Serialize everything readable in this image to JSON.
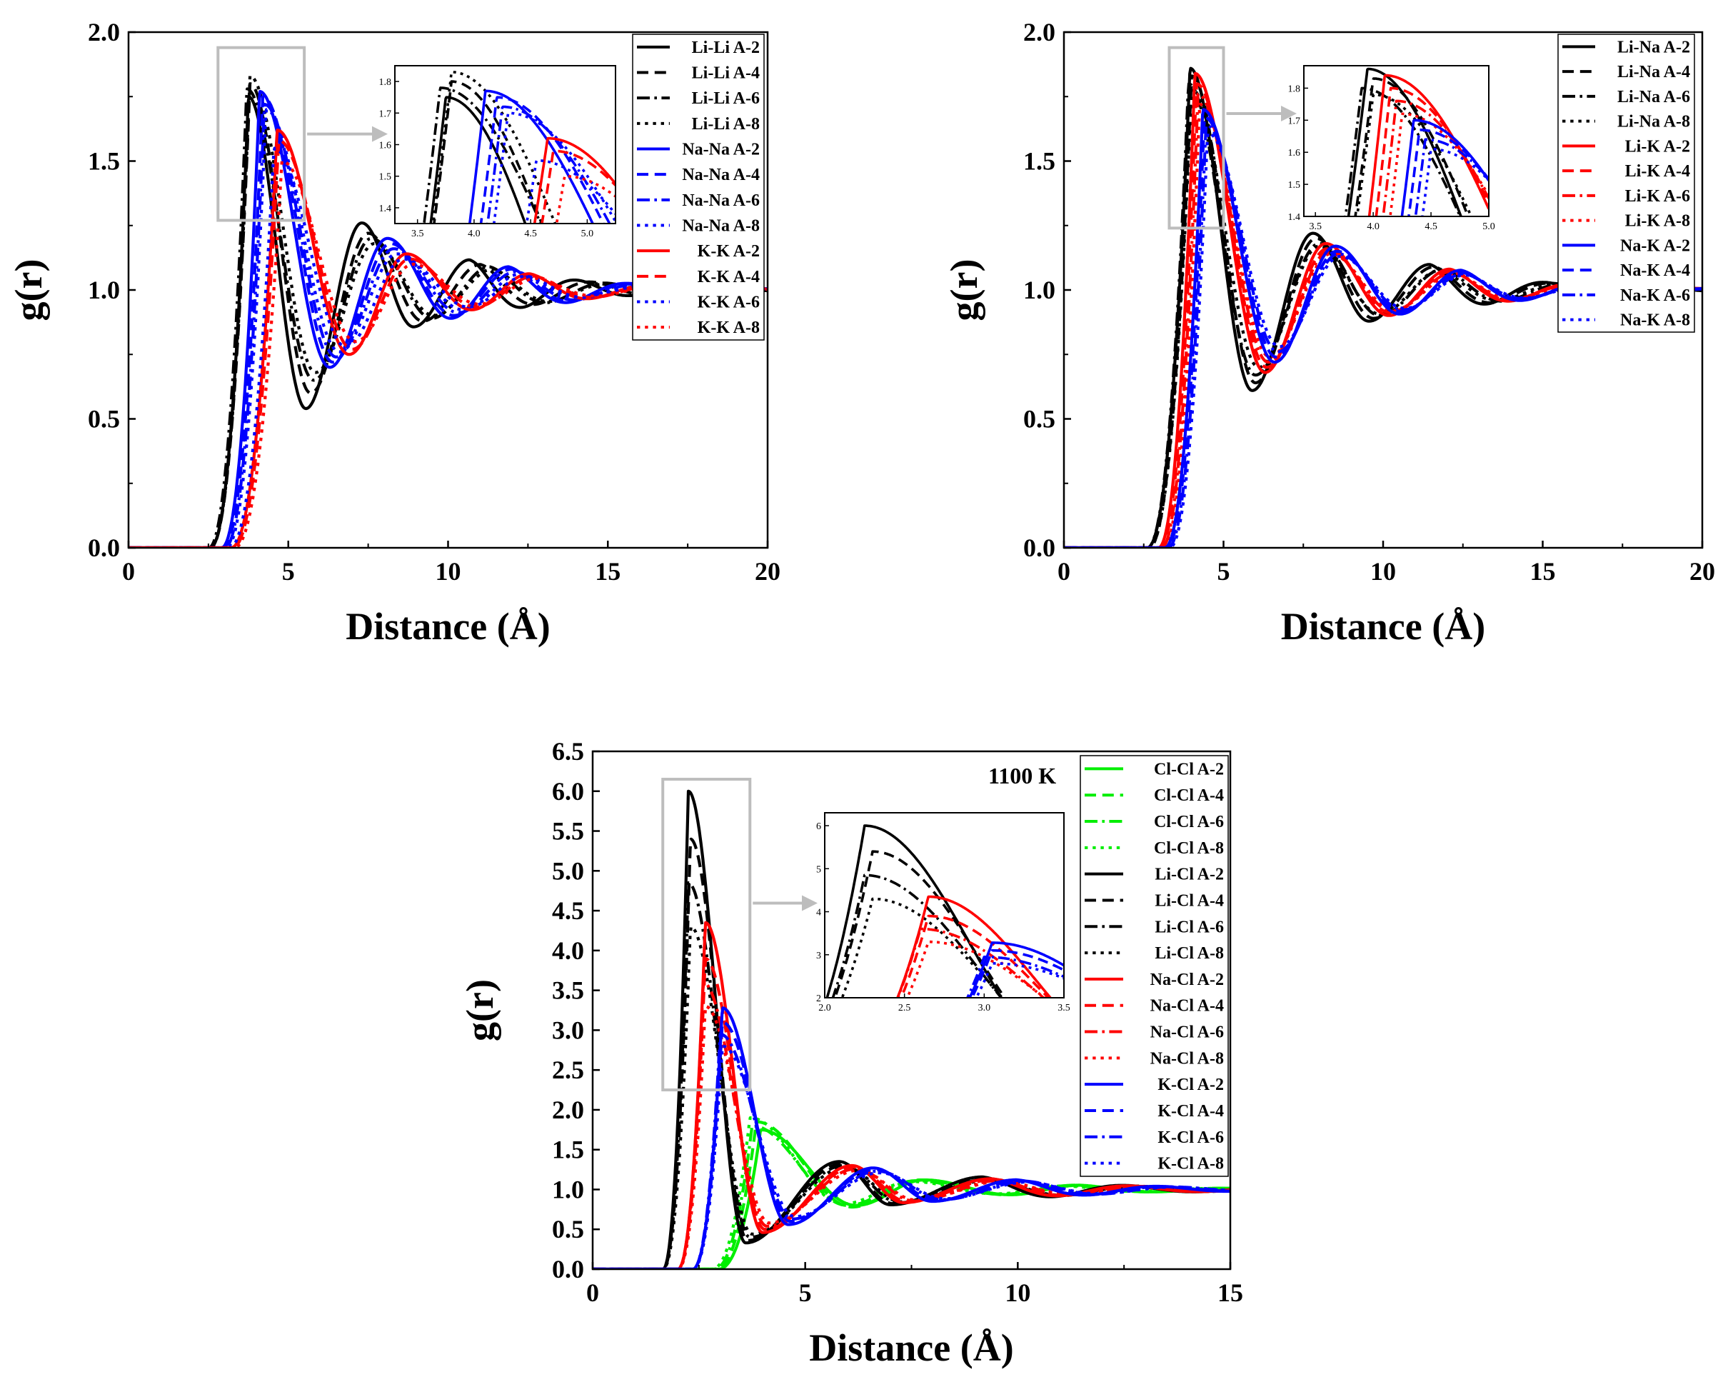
{
  "chart_data": [
    {
      "id": "panel_a",
      "type": "line",
      "xlabel": "Distance (Å)",
      "ylabel": "g(r)",
      "xlim": [
        0,
        20
      ],
      "ylim": [
        0,
        2.0
      ],
      "xticks": [
        0,
        5,
        10,
        15,
        20
      ],
      "yticks": [
        0.0,
        0.5,
        1.0,
        1.5,
        2.0
      ],
      "xtick_labels": [
        "0",
        "5",
        "10",
        "15",
        "20"
      ],
      "ytick_labels": [
        "0.0",
        "0.5",
        "1.0",
        "1.5",
        "2.0"
      ],
      "legend_position": "top-right",
      "series": [
        {
          "name": "Li-Li A-2",
          "color": "#000000",
          "style": "solid",
          "peak": 3.75,
          "height": 1.75,
          "start": 2.55,
          "min_pos": 5.55,
          "min_val": 0.54,
          "second_pos": 7.3,
          "second_val": 1.26
        },
        {
          "name": "Li-Li A-4",
          "color": "#000000",
          "style": "dash",
          "peak": 3.8,
          "height": 1.8,
          "start": 2.55,
          "min_pos": 5.7,
          "min_val": 0.6,
          "second_pos": 7.5,
          "second_val": 1.22
        },
        {
          "name": "Li-Li A-6",
          "color": "#000000",
          "style": "dashdot",
          "peak": 3.7,
          "height": 1.78,
          "start": 2.5,
          "min_pos": 5.8,
          "min_val": 0.65,
          "second_pos": 7.6,
          "second_val": 1.2
        },
        {
          "name": "Li-Li A-8",
          "color": "#000000",
          "style": "dot",
          "peak": 3.8,
          "height": 1.83,
          "start": 2.55,
          "min_pos": 5.85,
          "min_val": 0.68,
          "second_pos": 7.7,
          "second_val": 1.18
        },
        {
          "name": "Na-Na A-2",
          "color": "#0000ff",
          "style": "solid",
          "peak": 4.1,
          "height": 1.77,
          "start": 2.9,
          "min_pos": 6.3,
          "min_val": 0.7,
          "second_pos": 8.1,
          "second_val": 1.2
        },
        {
          "name": "Na-Na A-4",
          "color": "#0000ff",
          "style": "dash",
          "peak": 4.2,
          "height": 1.75,
          "start": 2.95,
          "min_pos": 6.4,
          "min_val": 0.72,
          "second_pos": 8.2,
          "second_val": 1.18
        },
        {
          "name": "Na-Na A-6",
          "color": "#0000ff",
          "style": "dashdot",
          "peak": 4.25,
          "height": 1.72,
          "start": 3.0,
          "min_pos": 6.5,
          "min_val": 0.74,
          "second_pos": 8.3,
          "second_val": 1.16
        },
        {
          "name": "Na-Na A-8",
          "color": "#0000ff",
          "style": "dot",
          "peak": 4.3,
          "height": 1.7,
          "start": 3.05,
          "min_pos": 6.6,
          "min_val": 0.76,
          "second_pos": 8.4,
          "second_val": 1.14
        },
        {
          "name": "K-K A-2",
          "color": "#ff0000",
          "style": "solid",
          "peak": 4.65,
          "height": 1.62,
          "start": 3.2,
          "min_pos": 6.9,
          "min_val": 0.75,
          "second_pos": 8.7,
          "second_val": 1.14
        },
        {
          "name": "K-K A-4",
          "color": "#ff0000",
          "style": "dash",
          "peak": 4.7,
          "height": 1.58,
          "start": 3.25,
          "min_pos": 7.0,
          "min_val": 0.77,
          "second_pos": 8.8,
          "second_val": 1.12
        },
        {
          "name": "K-K A-6",
          "color": "#0000ff",
          "style": "dot",
          "peak": 4.55,
          "height": 1.55,
          "start": 3.15,
          "min_pos": 6.8,
          "min_val": 0.78,
          "second_pos": 8.6,
          "second_val": 1.12
        },
        {
          "name": "K-K A-8",
          "color": "#ff0000",
          "style": "dot",
          "peak": 4.8,
          "height": 1.5,
          "start": 3.3,
          "min_pos": 7.1,
          "min_val": 0.8,
          "second_pos": 8.9,
          "second_val": 1.1
        }
      ],
      "inset": {
        "xlim": [
          3.3,
          5.25
        ],
        "ylim": [
          1.35,
          1.85
        ],
        "xticks": [
          3.5,
          4.0,
          4.5,
          5.0
        ],
        "yticks": [
          1.4,
          1.5,
          1.6,
          1.7,
          1.8
        ],
        "xtick_labels": [
          "3.5",
          "4.0",
          "4.5",
          "5.0"
        ],
        "ytick_labels": [
          "1.4",
          "1.5",
          "1.6",
          "1.7",
          "1.8"
        ]
      }
    },
    {
      "id": "panel_b",
      "type": "line",
      "xlabel": "Distance (Å)",
      "ylabel": "g(r)",
      "xlim": [
        0,
        20
      ],
      "ylim": [
        0,
        2.0
      ],
      "xticks": [
        0,
        5,
        10,
        15,
        20
      ],
      "yticks": [
        0.0,
        0.5,
        1.0,
        1.5,
        2.0
      ],
      "xtick_labels": [
        "0",
        "5",
        "10",
        "15",
        "20"
      ],
      "ytick_labels": [
        "0.0",
        "0.5",
        "1.0",
        "1.5",
        "2.0"
      ],
      "legend_position": "top-right",
      "series": [
        {
          "name": "Li-Na A-2",
          "color": "#000000",
          "style": "solid",
          "peak": 3.95,
          "height": 1.86,
          "start": 2.6,
          "min_pos": 5.9,
          "min_val": 0.61,
          "second_pos": 7.8,
          "second_val": 1.22
        },
        {
          "name": "Li-Na A-4",
          "color": "#000000",
          "style": "dash",
          "peak": 4.0,
          "height": 1.83,
          "start": 2.65,
          "min_pos": 6.0,
          "min_val": 0.64,
          "second_pos": 7.9,
          "second_val": 1.2
        },
        {
          "name": "Li-Na A-6",
          "color": "#000000",
          "style": "dashdot",
          "peak": 3.9,
          "height": 1.8,
          "start": 2.6,
          "min_pos": 6.0,
          "min_val": 0.67,
          "second_pos": 8.0,
          "second_val": 1.18
        },
        {
          "name": "Li-Na A-8",
          "color": "#000000",
          "style": "dot",
          "peak": 4.0,
          "height": 1.78,
          "start": 2.65,
          "min_pos": 6.1,
          "min_val": 0.7,
          "second_pos": 8.0,
          "second_val": 1.17
        },
        {
          "name": "Li-K A-2",
          "color": "#ff0000",
          "style": "solid",
          "peak": 4.1,
          "height": 1.84,
          "start": 2.95,
          "min_pos": 6.3,
          "min_val": 0.68,
          "second_pos": 8.2,
          "second_val": 1.18
        },
        {
          "name": "Li-K A-4",
          "color": "#ff0000",
          "style": "dash",
          "peak": 4.15,
          "height": 1.8,
          "start": 3.0,
          "min_pos": 6.35,
          "min_val": 0.7,
          "second_pos": 8.25,
          "second_val": 1.16
        },
        {
          "name": "Li-K A-6",
          "color": "#ff0000",
          "style": "dashdot",
          "peak": 4.2,
          "height": 1.76,
          "start": 3.05,
          "min_pos": 6.4,
          "min_val": 0.72,
          "second_pos": 8.3,
          "second_val": 1.15
        },
        {
          "name": "Li-K A-8",
          "color": "#ff0000",
          "style": "dot",
          "peak": 4.25,
          "height": 1.72,
          "start": 3.1,
          "min_pos": 6.45,
          "min_val": 0.74,
          "second_pos": 8.35,
          "second_val": 1.14
        },
        {
          "name": "Na-K A-2",
          "color": "#0000ff",
          "style": "solid",
          "peak": 4.35,
          "height": 1.7,
          "start": 3.15,
          "min_pos": 6.6,
          "min_val": 0.72,
          "second_pos": 8.5,
          "second_val": 1.17
        },
        {
          "name": "Na-K A-4",
          "color": "#0000ff",
          "style": "dash",
          "peak": 4.4,
          "height": 1.67,
          "start": 3.2,
          "min_pos": 6.65,
          "min_val": 0.74,
          "second_pos": 8.55,
          "second_val": 1.15
        },
        {
          "name": "Na-K A-6",
          "color": "#0000ff",
          "style": "dashdot",
          "peak": 4.45,
          "height": 1.64,
          "start": 3.25,
          "min_pos": 6.7,
          "min_val": 0.76,
          "second_pos": 8.6,
          "second_val": 1.14
        },
        {
          "name": "Na-K A-8",
          "color": "#0000ff",
          "style": "dot",
          "peak": 4.5,
          "height": 1.61,
          "start": 3.3,
          "min_pos": 6.75,
          "min_val": 0.78,
          "second_pos": 8.65,
          "second_val": 1.13
        }
      ],
      "inset": {
        "xlim": [
          3.4,
          5.0
        ],
        "ylim": [
          1.4,
          1.87
        ],
        "xticks": [
          3.5,
          4.0,
          4.5,
          5.0
        ],
        "yticks": [
          1.4,
          1.5,
          1.6,
          1.7,
          1.8
        ],
        "xtick_labels": [
          "3.5",
          "4.0",
          "4.5",
          "5.0"
        ],
        "ytick_labels": [
          "1.4",
          "1.5",
          "1.6",
          "1.7",
          "1.8"
        ]
      }
    },
    {
      "id": "panel_c",
      "type": "line",
      "xlabel": "Distance (Å)",
      "ylabel": "g(r)",
      "annotation": "1100 K",
      "xlim": [
        0,
        15
      ],
      "ylim": [
        0,
        6.5
      ],
      "xticks": [
        0,
        5,
        10,
        15
      ],
      "yticks": [
        0.0,
        0.5,
        1.0,
        1.5,
        2.0,
        2.5,
        3.0,
        3.5,
        4.0,
        4.5,
        5.0,
        5.5,
        6.0,
        6.5
      ],
      "xtick_labels": [
        "0",
        "5",
        "10",
        "15"
      ],
      "ytick_labels": [
        "0.0",
        "0.5",
        "1.0",
        "1.5",
        "2.0",
        "2.5",
        "3.0",
        "3.5",
        "4.0",
        "4.5",
        "5.0",
        "5.5",
        "6.0",
        "6.5"
      ],
      "legend_position": "top-right",
      "series": [
        {
          "name": "Cl-Cl A-2",
          "color": "#00ee00",
          "style": "solid",
          "peak": 3.95,
          "height": 1.75,
          "start": 2.95,
          "min_pos": 6.2,
          "min_val": 0.8,
          "second_pos": 7.8,
          "second_val": 1.12
        },
        {
          "name": "Cl-Cl A-4",
          "color": "#00ee00",
          "style": "dash",
          "peak": 3.85,
          "height": 1.85,
          "start": 2.9,
          "min_pos": 6.1,
          "min_val": 0.78,
          "second_pos": 7.7,
          "second_val": 1.12
        },
        {
          "name": "Cl-Cl A-6",
          "color": "#00ee00",
          "style": "dashdot",
          "peak": 3.75,
          "height": 1.8,
          "start": 2.85,
          "min_pos": 6.0,
          "min_val": 0.8,
          "second_pos": 7.6,
          "second_val": 1.11
        },
        {
          "name": "Cl-Cl A-8",
          "color": "#00ee00",
          "style": "dot",
          "peak": 3.7,
          "height": 1.9,
          "start": 2.8,
          "min_pos": 5.9,
          "min_val": 0.82,
          "second_pos": 7.5,
          "second_val": 1.1
        },
        {
          "name": "Li-Cl A-2",
          "color": "#000000",
          "style": "solid",
          "peak": 2.25,
          "height": 6.0,
          "start": 1.65,
          "min_pos": 3.6,
          "min_val": 0.33,
          "second_pos": 5.8,
          "second_val": 1.35
        },
        {
          "name": "Li-Cl A-4",
          "color": "#000000",
          "style": "dash",
          "peak": 2.3,
          "height": 5.4,
          "start": 1.65,
          "min_pos": 3.65,
          "min_val": 0.36,
          "second_pos": 5.85,
          "second_val": 1.32
        },
        {
          "name": "Li-Cl A-6",
          "color": "#000000",
          "style": "dashdot",
          "peak": 2.25,
          "height": 4.85,
          "start": 1.65,
          "min_pos": 3.7,
          "min_val": 0.4,
          "second_pos": 5.9,
          "second_val": 1.3
        },
        {
          "name": "Li-Cl A-8",
          "color": "#000000",
          "style": "dot",
          "peak": 2.3,
          "height": 4.3,
          "start": 1.65,
          "min_pos": 3.75,
          "min_val": 0.44,
          "second_pos": 5.95,
          "second_val": 1.28
        },
        {
          "name": "Na-Cl A-2",
          "color": "#ff0000",
          "style": "solid",
          "peak": 2.65,
          "height": 4.35,
          "start": 2.0,
          "min_pos": 4.0,
          "min_val": 0.46,
          "second_pos": 6.1,
          "second_val": 1.3
        },
        {
          "name": "Na-Cl A-4",
          "color": "#ff0000",
          "style": "dash",
          "peak": 2.65,
          "height": 3.9,
          "start": 2.0,
          "min_pos": 4.05,
          "min_val": 0.5,
          "second_pos": 6.15,
          "second_val": 1.28
        },
        {
          "name": "Na-Cl A-6",
          "color": "#ff0000",
          "style": "dashdot",
          "peak": 2.6,
          "height": 3.6,
          "start": 2.0,
          "min_pos": 4.1,
          "min_val": 0.54,
          "second_pos": 6.2,
          "second_val": 1.26
        },
        {
          "name": "Na-Cl A-8",
          "color": "#ff0000",
          "style": "dot",
          "peak": 2.65,
          "height": 3.3,
          "start": 2.0,
          "min_pos": 4.15,
          "min_val": 0.58,
          "second_pos": 6.25,
          "second_val": 1.24
        },
        {
          "name": "K-Cl A-2",
          "color": "#0000ff",
          "style": "solid",
          "peak": 3.05,
          "height": 3.28,
          "start": 2.35,
          "min_pos": 4.6,
          "min_val": 0.56,
          "second_pos": 6.6,
          "second_val": 1.27
        },
        {
          "name": "K-Cl A-4",
          "color": "#0000ff",
          "style": "dash",
          "peak": 3.05,
          "height": 3.1,
          "start": 2.35,
          "min_pos": 4.65,
          "min_val": 0.6,
          "second_pos": 6.65,
          "second_val": 1.25
        },
        {
          "name": "K-Cl A-6",
          "color": "#0000ff",
          "style": "dashdot",
          "peak": 3.0,
          "height": 2.95,
          "start": 2.35,
          "min_pos": 4.7,
          "min_val": 0.63,
          "second_pos": 6.7,
          "second_val": 1.23
        },
        {
          "name": "K-Cl A-8",
          "color": "#0000ff",
          "style": "dot",
          "peak": 3.05,
          "height": 2.8,
          "start": 2.35,
          "min_pos": 4.75,
          "min_val": 0.66,
          "second_pos": 6.75,
          "second_val": 1.21
        }
      ],
      "inset": {
        "xlim": [
          2.0,
          3.5
        ],
        "ylim": [
          2.0,
          6.3
        ],
        "xticks": [
          2.0,
          2.5,
          3.0,
          3.5
        ],
        "yticks": [
          2,
          3,
          4,
          5,
          6
        ],
        "xtick_labels": [
          "2.0",
          "2.5",
          "3.0",
          "3.5"
        ],
        "ytick_labels": [
          "2",
          "3",
          "4",
          "5",
          "6"
        ]
      }
    }
  ]
}
